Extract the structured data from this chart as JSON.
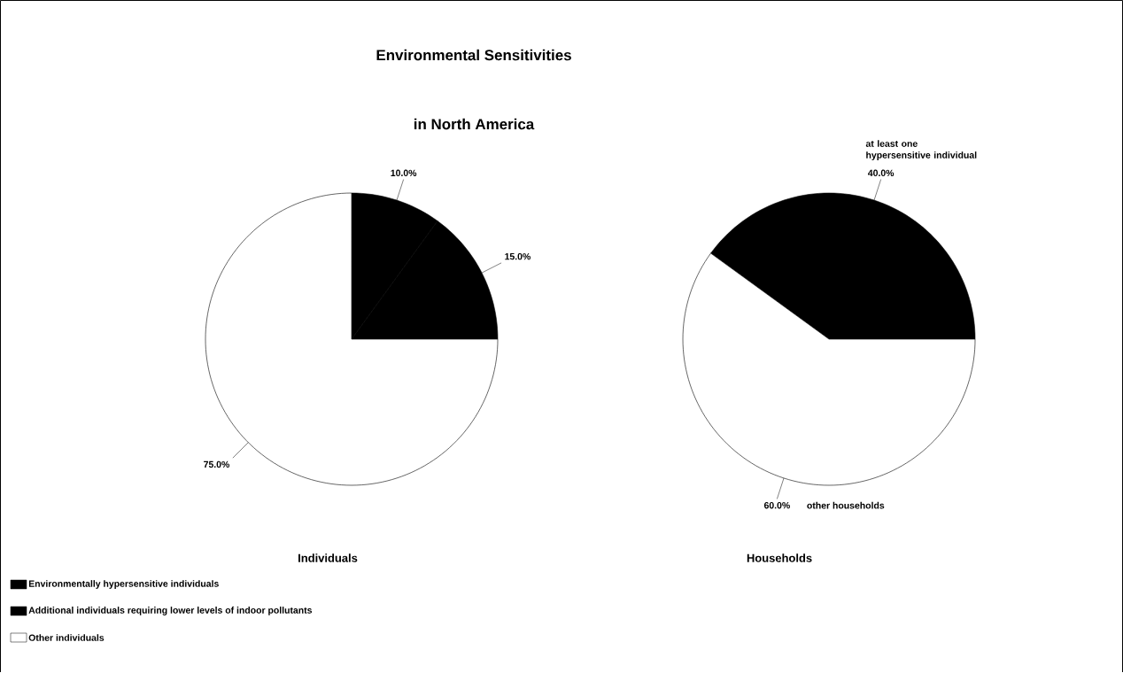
{
  "chart_data": [
    {
      "type": "pie",
      "title": "Environmental Sensitivities",
      "subtitle": "in North America",
      "xlabel": "Individuals",
      "categories": [
        "Environmentally hypersensitive individuals",
        "Additional individuals requiring lower levels of indoor pollutants",
        "Other individuals"
      ],
      "values": [
        10,
        15,
        75
      ],
      "colors": [
        "#000000",
        "#000000",
        "#ffffff"
      ],
      "value_labels": [
        "10.0%",
        "15.0%",
        "75.0%"
      ],
      "legend": "bottom left"
    },
    {
      "type": "pie",
      "xlabel": "Households",
      "categories": [
        "at least one hypersensitive individual",
        "other households"
      ],
      "values": [
        40,
        60
      ],
      "colors": [
        "#000000",
        "#ffffff"
      ],
      "value_labels": [
        "40.0%",
        "60.0%"
      ]
    }
  ]
}
